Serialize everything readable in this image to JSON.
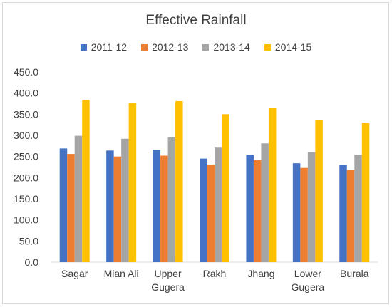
{
  "chart_data": {
    "type": "bar",
    "title": "Effective Rainfall",
    "xlabel": "",
    "ylabel": "",
    "categories": [
      "Sagar",
      "Mian Ali",
      "Upper Gugera",
      "Rakh",
      "Jhang",
      "Lower Gugera",
      "Burala"
    ],
    "category_lines": [
      [
        "Sagar"
      ],
      [
        "Mian Ali"
      ],
      [
        "Upper",
        "Gugera"
      ],
      [
        "Rakh"
      ],
      [
        "Jhang"
      ],
      [
        "Lower",
        "Gugera"
      ],
      [
        "Burala"
      ]
    ],
    "series": [
      {
        "name": "2011-12",
        "color": "#4472c4",
        "values": [
          269,
          264,
          266,
          245,
          254,
          234,
          230
        ]
      },
      {
        "name": "2012-13",
        "color": "#ed7d31",
        "values": [
          256,
          250,
          252,
          231,
          241,
          223,
          218
        ]
      },
      {
        "name": "2013-14",
        "color": "#a5a5a5",
        "values": [
          299,
          292,
          295,
          271,
          281,
          260,
          254
        ]
      },
      {
        "name": "2014-15",
        "color": "#ffc000",
        "values": [
          384,
          377,
          381,
          350,
          364,
          337,
          330
        ]
      }
    ],
    "ylim": [
      0,
      450
    ],
    "yticks": [
      "0.0",
      "50.0",
      "100.0",
      "150.0",
      "200.0",
      "250.0",
      "300.0",
      "350.0",
      "400.0",
      "450.0"
    ],
    "grid": false,
    "legend_position": "top"
  }
}
